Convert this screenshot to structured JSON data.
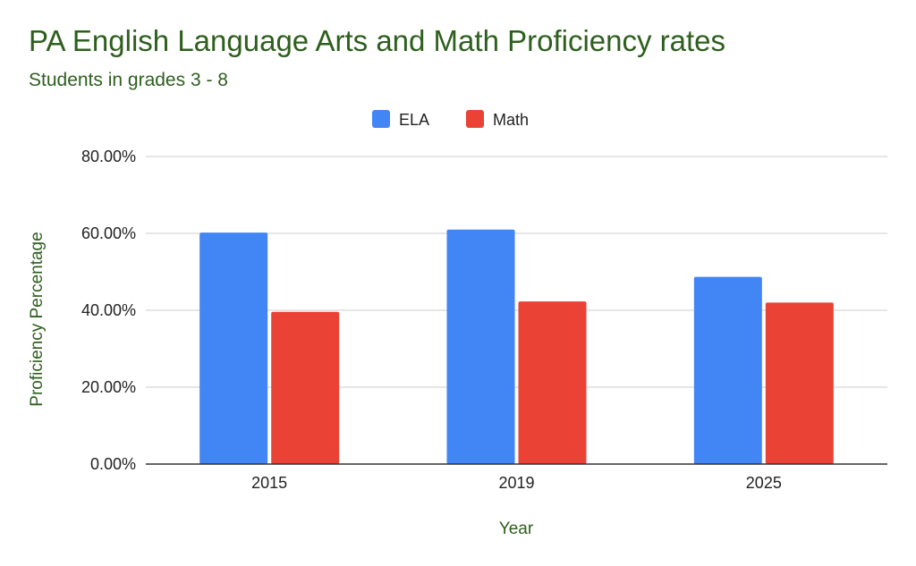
{
  "chart_data": {
    "type": "bar",
    "title": "PA English Language Arts and Math Proficiency rates",
    "subtitle": "Students in grades 3 - 8",
    "xlabel": "Year",
    "ylabel": "Proficiency Percentage",
    "categories": [
      "2015",
      "2019",
      "2025"
    ],
    "series": [
      {
        "name": "ELA",
        "color": "#4285f4",
        "values": [
          60.2,
          61.0,
          48.7
        ]
      },
      {
        "name": "Math",
        "color": "#ea4335",
        "values": [
          39.6,
          42.3,
          42.0
        ]
      }
    ],
    "ylim": [
      0,
      80
    ],
    "yticks": [
      "0.00%",
      "20.00%",
      "40.00%",
      "60.00%",
      "80.00%"
    ],
    "ytick_values": [
      0,
      20,
      40,
      60,
      80
    ],
    "grid": true,
    "legend_position": "top-center"
  }
}
